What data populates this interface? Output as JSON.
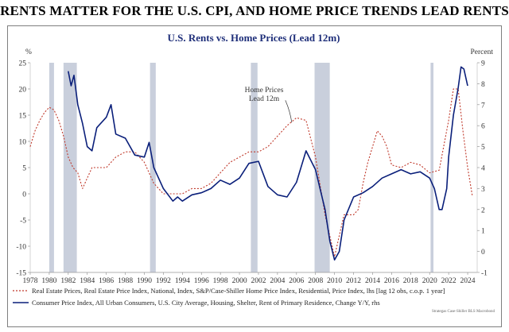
{
  "headline": "RENTS MATTER FOR THE U.S. CPI, AND HOME PRICE TRENDS LEAD RENTS",
  "colors": {
    "rents": "#0a1f7a",
    "home_prices": "#c0392b",
    "recession": "#c9cfdc",
    "title": "#1f2f7a"
  },
  "chart_data": {
    "type": "line",
    "title": "U.S. Rents vs. Home Prices (Lead 12m)",
    "y_left_label": "%",
    "y_right_label": "Percent",
    "y_left_ticks": [
      "25",
      "20",
      "15",
      "10",
      "5",
      "0",
      "-5",
      "-10",
      "-15"
    ],
    "y_right_ticks": [
      "9",
      "8",
      "7",
      "6",
      "5",
      "4",
      "3",
      "2",
      "1",
      "0",
      "-1"
    ],
    "y_left_range": [
      -15,
      25
    ],
    "y_right_range": [
      -1,
      9
    ],
    "x_range": [
      1978,
      2025
    ],
    "x_ticks": [
      "1978",
      "1980",
      "1982",
      "1984",
      "1986",
      "1988",
      "1990",
      "1992",
      "1994",
      "1996",
      "1998",
      "2000",
      "2002",
      "2004",
      "2006",
      "2008",
      "2010",
      "2012",
      "2014",
      "2016",
      "2018",
      "2020",
      "2022",
      "2024"
    ],
    "recessions": [
      [
        1980.0,
        1980.5
      ],
      [
        1981.5,
        1982.9
      ],
      [
        1990.6,
        1991.2
      ],
      [
        2001.2,
        2001.9
      ],
      [
        2007.9,
        2009.5
      ],
      [
        2020.1,
        2020.4
      ]
    ],
    "annotation": {
      "line1": "Home Prices",
      "line2": "Lead 12m",
      "x": 2005.5,
      "y": 13.6
    },
    "series": [
      {
        "name": "Real Estate Prices, Real Estate Price Index, National, Index, S&P/Case-Shiller Home Price Index, Residential, Price Index, lhs [lag 12 obs, c.o.p. 1 year]",
        "axis": "left",
        "style": "dotted",
        "points": [
          [
            1978,
            9
          ],
          [
            1978.5,
            12
          ],
          [
            1979,
            14
          ],
          [
            1979.5,
            15.5
          ],
          [
            1980,
            16.5
          ],
          [
            1980.5,
            16
          ],
          [
            1981,
            14
          ],
          [
            1981.5,
            11
          ],
          [
            1982,
            7
          ],
          [
            1982.5,
            5
          ],
          [
            1983,
            4
          ],
          [
            1983.5,
            1
          ],
          [
            1984,
            3
          ],
          [
            1984.5,
            5
          ],
          [
            1985,
            5
          ],
          [
            1986,
            5
          ],
          [
            1987,
            7
          ],
          [
            1988,
            8
          ],
          [
            1989,
            8
          ],
          [
            1990,
            6
          ],
          [
            1991,
            2
          ],
          [
            1992,
            0
          ],
          [
            1993,
            0
          ],
          [
            1994,
            0
          ],
          [
            1995,
            1
          ],
          [
            1996,
            1
          ],
          [
            1997,
            2
          ],
          [
            1998,
            4
          ],
          [
            1999,
            6
          ],
          [
            2000,
            7
          ],
          [
            2001,
            8
          ],
          [
            2002,
            8
          ],
          [
            2003,
            9
          ],
          [
            2004,
            11
          ],
          [
            2005,
            13
          ],
          [
            2006,
            14.5
          ],
          [
            2007,
            14
          ],
          [
            2008,
            7
          ],
          [
            2009,
            -4
          ],
          [
            2010,
            -12
          ],
          [
            2010.5,
            -8
          ],
          [
            2011,
            -4
          ],
          [
            2012,
            -4
          ],
          [
            2012.5,
            -3
          ],
          [
            2013,
            2
          ],
          [
            2013.5,
            6
          ],
          [
            2014,
            9
          ],
          [
            2014.5,
            12
          ],
          [
            2015,
            11
          ],
          [
            2015.5,
            9
          ],
          [
            2016,
            5.5
          ],
          [
            2017,
            5
          ],
          [
            2018,
            6
          ],
          [
            2019,
            5.5
          ],
          [
            2020,
            4
          ],
          [
            2021,
            4.5
          ],
          [
            2022,
            14
          ],
          [
            2022.5,
            20
          ],
          [
            2023,
            20
          ],
          [
            2023.5,
            12
          ],
          [
            2024,
            5
          ],
          [
            2024.5,
            -0.5
          ]
        ]
      },
      {
        "name": "Consumer Price Index, All Urban Consumers, U.S. City Average, Housing, Shelter, Rent of Primary Residence, Change Y/Y, rhs",
        "axis": "right",
        "style": "solid",
        "points": [
          [
            1982,
            8.6
          ],
          [
            1982.3,
            7.9
          ],
          [
            1982.6,
            8.4
          ],
          [
            1983,
            7.0
          ],
          [
            1983.5,
            6.1
          ],
          [
            1984,
            5.0
          ],
          [
            1984.5,
            4.8
          ],
          [
            1985,
            5.9
          ],
          [
            1986,
            6.4
          ],
          [
            1986.5,
            7.0
          ],
          [
            1987,
            5.6
          ],
          [
            1988,
            5.4
          ],
          [
            1989,
            4.6
          ],
          [
            1990,
            4.5
          ],
          [
            1990.5,
            5.2
          ],
          [
            1991,
            4.0
          ],
          [
            1992,
            3.0
          ],
          [
            1993,
            2.4
          ],
          [
            1993.5,
            2.6
          ],
          [
            1994,
            2.4
          ],
          [
            1995,
            2.7
          ],
          [
            1996,
            2.8
          ],
          [
            1997,
            3.0
          ],
          [
            1998,
            3.4
          ],
          [
            1999,
            3.2
          ],
          [
            2000,
            3.5
          ],
          [
            2001,
            4.2
          ],
          [
            2002,
            4.3
          ],
          [
            2003,
            3.1
          ],
          [
            2004,
            2.7
          ],
          [
            2005,
            2.6
          ],
          [
            2006,
            3.3
          ],
          [
            2007,
            4.8
          ],
          [
            2008,
            3.9
          ],
          [
            2009,
            2.0
          ],
          [
            2009.5,
            0.5
          ],
          [
            2010,
            -0.4
          ],
          [
            2010.5,
            0.0
          ],
          [
            2011,
            1.5
          ],
          [
            2012,
            2.6
          ],
          [
            2013,
            2.8
          ],
          [
            2014,
            3.1
          ],
          [
            2015,
            3.5
          ],
          [
            2016,
            3.7
          ],
          [
            2017,
            3.9
          ],
          [
            2018,
            3.7
          ],
          [
            2019,
            3.8
          ],
          [
            2020,
            3.5
          ],
          [
            2020.5,
            3.0
          ],
          [
            2021,
            2.0
          ],
          [
            2021.3,
            2.0
          ],
          [
            2021.8,
            3.0
          ],
          [
            2022,
            4.5
          ],
          [
            2022.5,
            6.5
          ],
          [
            2023,
            7.8
          ],
          [
            2023.3,
            8.8
          ],
          [
            2023.6,
            8.7
          ],
          [
            2024,
            7.9
          ]
        ]
      }
    ]
  },
  "legend": {
    "item1": "Real Estate Prices, Real Estate Price Index, National, Index, S&P/Case-Shiller Home Price Index, Residential, Price Index, lhs [lag 12 obs, c.o.p. 1 year]",
    "item2": "Consumer Price Index, All Urban Consumers, U.S. City Average, Housing, Shelter, Rent of Primary Residence, Change Y/Y, rhs"
  },
  "source": "Strategas Case-Shiller BLS Macrobond"
}
